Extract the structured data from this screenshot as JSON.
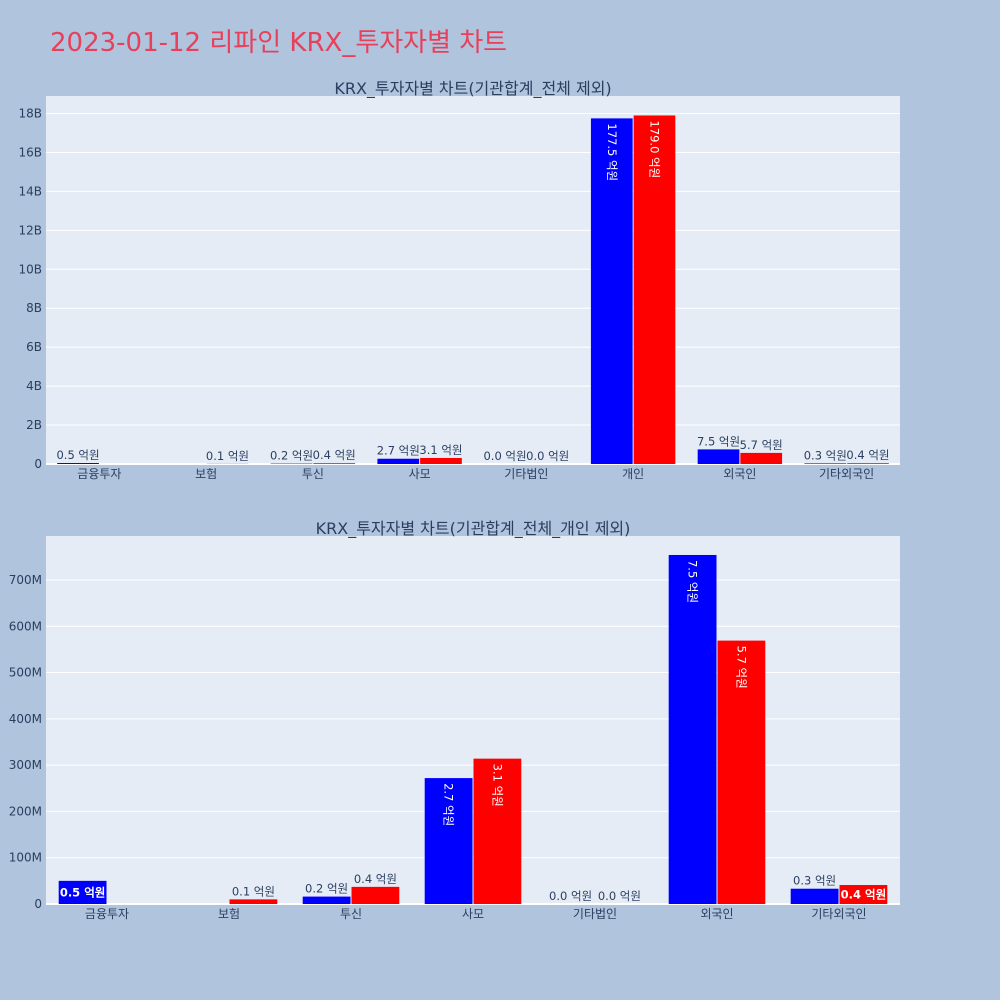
{
  "title": "2023-01-12 리파인 KRX_투자자별 차트",
  "colors": {
    "series_a": "#0000ff",
    "series_b": "#ff0000",
    "plot_bg": "#e5ecf6",
    "page_bg": "#b0c4de",
    "title": "#e8405a"
  },
  "chart_data": [
    {
      "type": "bar",
      "title": "KRX_투자자별 차트(기관합계_전체 제외)",
      "xlabel": "",
      "ylabel": "",
      "categories": [
        "금융투자",
        "보험",
        "투신",
        "사모",
        "기타법인",
        "개인",
        "외국인",
        "기타외국인"
      ],
      "ylim": [
        0,
        18900000000
      ],
      "yticks": [
        0,
        2000000000,
        4000000000,
        6000000000,
        8000000000,
        10000000000,
        12000000000,
        14000000000,
        16000000000,
        18000000000
      ],
      "ytick_labels": [
        "0",
        "2B",
        "4B",
        "6B",
        "8B",
        "10B",
        "12B",
        "14B",
        "16B",
        "18B"
      ],
      "grid": true,
      "series": [
        {
          "values": [
            50000000,
            null,
            20000000,
            270000000,
            0,
            17750000000,
            750000000,
            30000000
          ],
          "labels": [
            "0.5 억원",
            "",
            "0.2 억원",
            "2.7 억원",
            "0.0 억원",
            "177.5 억원",
            "7.5 억원",
            "0.3 억원"
          ]
        },
        {
          "values": [
            null,
            10000000,
            40000000,
            310000000,
            0,
            17900000000,
            570000000,
            40000000
          ],
          "labels": [
            "",
            "0.1 억원",
            "0.4 억원",
            "3.1 억원",
            "0.0 억원",
            "179.0 억원",
            "5.7 억원",
            "0.4 억원"
          ]
        }
      ]
    },
    {
      "type": "bar",
      "title": "KRX_투자자별 차트(기관합계_전체_개인 제외)",
      "xlabel": "",
      "ylabel": "",
      "categories": [
        "금융투자",
        "보험",
        "투신",
        "사모",
        "기타법인",
        "외국인",
        "기타외국인"
      ],
      "ylim": [
        0,
        795000000
      ],
      "yticks": [
        0,
        100000000,
        200000000,
        300000000,
        400000000,
        500000000,
        600000000,
        700000000
      ],
      "ytick_labels": [
        "0",
        "100M",
        "200M",
        "300M",
        "400M",
        "500M",
        "600M",
        "700M"
      ],
      "grid": true,
      "series": [
        {
          "values": [
            50000000,
            null,
            16000000,
            272000000,
            0,
            754000000,
            33000000
          ],
          "labels": [
            "0.5 억원",
            "",
            "0.2 억원",
            "2.7 억원",
            "0.0 억원",
            "7.5 억원",
            "0.3 억원"
          ]
        },
        {
          "values": [
            null,
            10000000,
            37000000,
            314000000,
            0,
            569000000,
            41000000
          ],
          "labels": [
            "",
            "0.1 억원",
            "0.4 억원",
            "3.1 억원",
            "0.0 억원",
            "5.7 억원",
            "0.4 억원"
          ]
        }
      ]
    }
  ]
}
